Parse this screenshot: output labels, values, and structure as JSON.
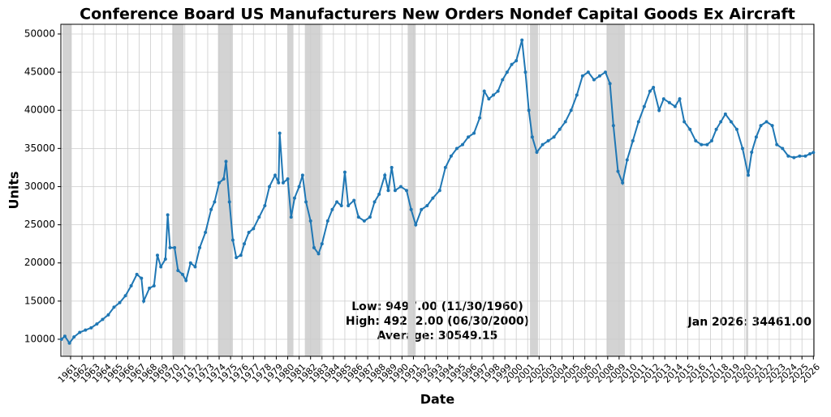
{
  "chart_data": {
    "type": "line",
    "title": "Conference Board US Manufacturers New Orders Nondef Capital Goods Ex Aircraft",
    "xlabel": "Date",
    "ylabel": "Units",
    "annotations": [
      "Low: 9497.00 (11/30/1960)",
      "High: 49202.00 (06/30/2000)",
      "Average: 30549.15"
    ],
    "last_label": "Jan 2026: 34461.00",
    "color": "#1f77b4",
    "grid": true,
    "recession_color": "#d3d3d3",
    "recessions": [
      [
        1960.3,
        1961.1
      ],
      [
        1969.9,
        1970.9
      ],
      [
        1973.9,
        1975.2
      ],
      [
        1980.0,
        1980.5
      ],
      [
        1981.5,
        1982.9
      ],
      [
        1990.5,
        1991.2
      ],
      [
        2001.2,
        2001.9
      ],
      [
        2007.9,
        2009.5
      ],
      [
        2020.1,
        2020.3
      ]
    ],
    "xlim": [
      1960.15,
      2026.05
    ],
    "ylim": [
      7770,
      51270
    ],
    "xticks": [
      1961,
      1962,
      1963,
      1964,
      1965,
      1966,
      1967,
      1968,
      1969,
      1970,
      1971,
      1972,
      1973,
      1974,
      1975,
      1976,
      1977,
      1978,
      1979,
      1980,
      1981,
      1982,
      1983,
      1984,
      1985,
      1986,
      1987,
      1988,
      1989,
      1990,
      1991,
      1992,
      1993,
      1994,
      1995,
      1996,
      1997,
      1998,
      1999,
      2000,
      2001,
      2002,
      2003,
      2004,
      2005,
      2006,
      2007,
      2008,
      2009,
      2010,
      2011,
      2012,
      2013,
      2014,
      2015,
      2016,
      2017,
      2018,
      2019,
      2020,
      2021,
      2022,
      2023,
      2024,
      2025,
      2026
    ],
    "yticks": [
      10000,
      15000,
      20000,
      25000,
      30000,
      35000,
      40000,
      45000,
      50000
    ],
    "x": [
      1960.2,
      1960.5,
      1960.9,
      1961.3,
      1961.8,
      1962.3,
      1962.8,
      1963.3,
      1963.8,
      1964.3,
      1964.8,
      1965.3,
      1965.8,
      1966.3,
      1966.8,
      1967.2,
      1967.4,
      1967.9,
      1968.3,
      1968.6,
      1968.9,
      1969.3,
      1969.5,
      1969.7,
      1970.1,
      1970.4,
      1970.8,
      1971.1,
      1971.5,
      1971.9,
      1972.3,
      1972.8,
      1973.3,
      1973.6,
      1974.0,
      1974.4,
      1974.6,
      1974.9,
      1975.2,
      1975.5,
      1975.9,
      1976.2,
      1976.6,
      1977.0,
      1977.5,
      1978.0,
      1978.4,
      1978.9,
      1979.2,
      1979.3,
      1979.6,
      1980.0,
      1980.3,
      1980.6,
      1981.0,
      1981.3,
      1981.6,
      1982.0,
      1982.3,
      1982.7,
      1983.0,
      1983.5,
      1983.9,
      1984.3,
      1984.7,
      1985.0,
      1985.3,
      1985.8,
      1986.2,
      1986.7,
      1987.2,
      1987.6,
      1988.0,
      1988.5,
      1988.8,
      1989.1,
      1989.4,
      1989.9,
      1990.4,
      1990.8,
      1991.2,
      1991.7,
      1992.2,
      1992.7,
      1993.3,
      1993.8,
      1994.3,
      1994.8,
      1995.3,
      1995.8,
      1996.3,
      1996.8,
      1997.2,
      1997.6,
      1998.0,
      1998.4,
      1998.8,
      1999.2,
      1999.6,
      2000.0,
      2000.5,
      2000.8,
      2001.1,
      2001.4,
      2001.8,
      2002.3,
      2002.8,
      2003.3,
      2003.8,
      2004.3,
      2004.8,
      2005.3,
      2005.8,
      2006.3,
      2006.8,
      2007.3,
      2007.8,
      2008.2,
      2008.5,
      2008.9,
      2009.3,
      2009.7,
      2010.2,
      2010.7,
      2011.2,
      2011.7,
      2012.0,
      2012.5,
      2012.9,
      2013.4,
      2013.9,
      2014.3,
      2014.7,
      2015.2,
      2015.7,
      2016.2,
      2016.7,
      2017.1,
      2017.5,
      2017.9,
      2018.3,
      2018.8,
      2019.3,
      2019.8,
      2020.3,
      2020.6,
      2021.0,
      2021.4,
      2021.9,
      2022.4,
      2022.8,
      2023.3,
      2023.8,
      2024.3,
      2024.8,
      2025.3,
      2025.7,
      2026.0
    ],
    "values": [
      10000,
      10400,
      9497,
      10300,
      10900,
      11200,
      11500,
      12000,
      12600,
      13200,
      14200,
      14800,
      15700,
      17000,
      18500,
      18000,
      15000,
      16700,
      17000,
      21000,
      19500,
      20500,
      26300,
      22000,
      22000,
      19000,
      18500,
      17700,
      20000,
      19500,
      22000,
      24000,
      27000,
      28000,
      30500,
      31000,
      33300,
      28000,
      23000,
      20700,
      21000,
      22500,
      24000,
      24500,
      26000,
      27500,
      30000,
      31500,
      30500,
      37000,
      30500,
      31000,
      26000,
      28500,
      30000,
      31500,
      28000,
      25500,
      22000,
      21200,
      22500,
      25500,
      27000,
      28000,
      27500,
      31900,
      27500,
      28200,
      26000,
      25500,
      26000,
      28000,
      29000,
      31500,
      29500,
      32500,
      29500,
      30000,
      29500,
      27000,
      25000,
      27000,
      27500,
      28500,
      29500,
      32500,
      34000,
      35000,
      35500,
      36500,
      37000,
      39000,
      42500,
      41500,
      42000,
      42500,
      44000,
      45000,
      46000,
      46500,
      49202,
      45000,
      40000,
      36500,
      34500,
      35500,
      36000,
      36500,
      37500,
      38500,
      40000,
      42000,
      44500,
      45000,
      44000,
      44500,
      45000,
      43500,
      38000,
      32000,
      30500,
      33500,
      36000,
      38500,
      40500,
      42500,
      43000,
      40000,
      41500,
      41000,
      40500,
      41500,
      38500,
      37500,
      36000,
      35500,
      35500,
      36000,
      37500,
      38500,
      39500,
      38500,
      37500,
      35000,
      31500,
      34500,
      36500,
      38000,
      38500,
      38000,
      35500,
      35000,
      34000,
      33800,
      34000,
      34000,
      34300,
      34461
    ]
  }
}
